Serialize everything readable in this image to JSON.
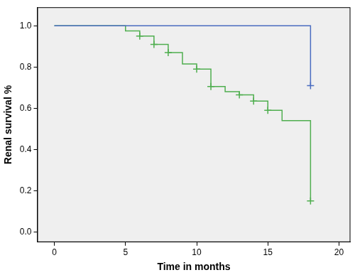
{
  "chart_data": {
    "type": "line",
    "x_label": "Time in months",
    "y_label": "Renal survival %",
    "xlim": [
      -1.2,
      20.8
    ],
    "ylim": [
      -0.05,
      1.09
    ],
    "xticks": [
      0,
      5,
      10,
      15,
      20
    ],
    "yticks": [
      {
        "value": 0,
        "label": "0.0"
      },
      0.2,
      0.4,
      0.6,
      0.8,
      {
        "value": 1,
        "label": "1.0"
      }
    ],
    "grid": false,
    "series": [
      {
        "color": "#4a6cc0",
        "line_style": "steps",
        "x": [
          0,
          18
        ],
        "values": [
          1,
          0.71
        ]
      },
      {
        "color": "#4a6cc0",
        "type": "scatter",
        "marker": "cross",
        "x": [
          18
        ],
        "values": [
          0.71
        ]
      },
      {
        "color": "#4fae4f",
        "line_style": "steps",
        "x": [
          0,
          5,
          6,
          7,
          8,
          9,
          10,
          11,
          12,
          13,
          14,
          15,
          16,
          18
        ],
        "values": [
          1,
          0.975,
          0.95,
          0.91,
          0.87,
          0.815,
          0.79,
          0.705,
          0.68,
          0.665,
          0.635,
          0.59,
          0.54,
          0.15
        ]
      },
      {
        "color": "#4fae4f",
        "type": "scatter",
        "marker": "cross",
        "x": [
          6,
          7,
          8,
          10,
          11,
          13,
          14,
          15,
          18
        ],
        "values": [
          0.95,
          0.91,
          0.87,
          0.79,
          0.705,
          0.665,
          0.635,
          0.59,
          0.15
        ]
      }
    ]
  }
}
